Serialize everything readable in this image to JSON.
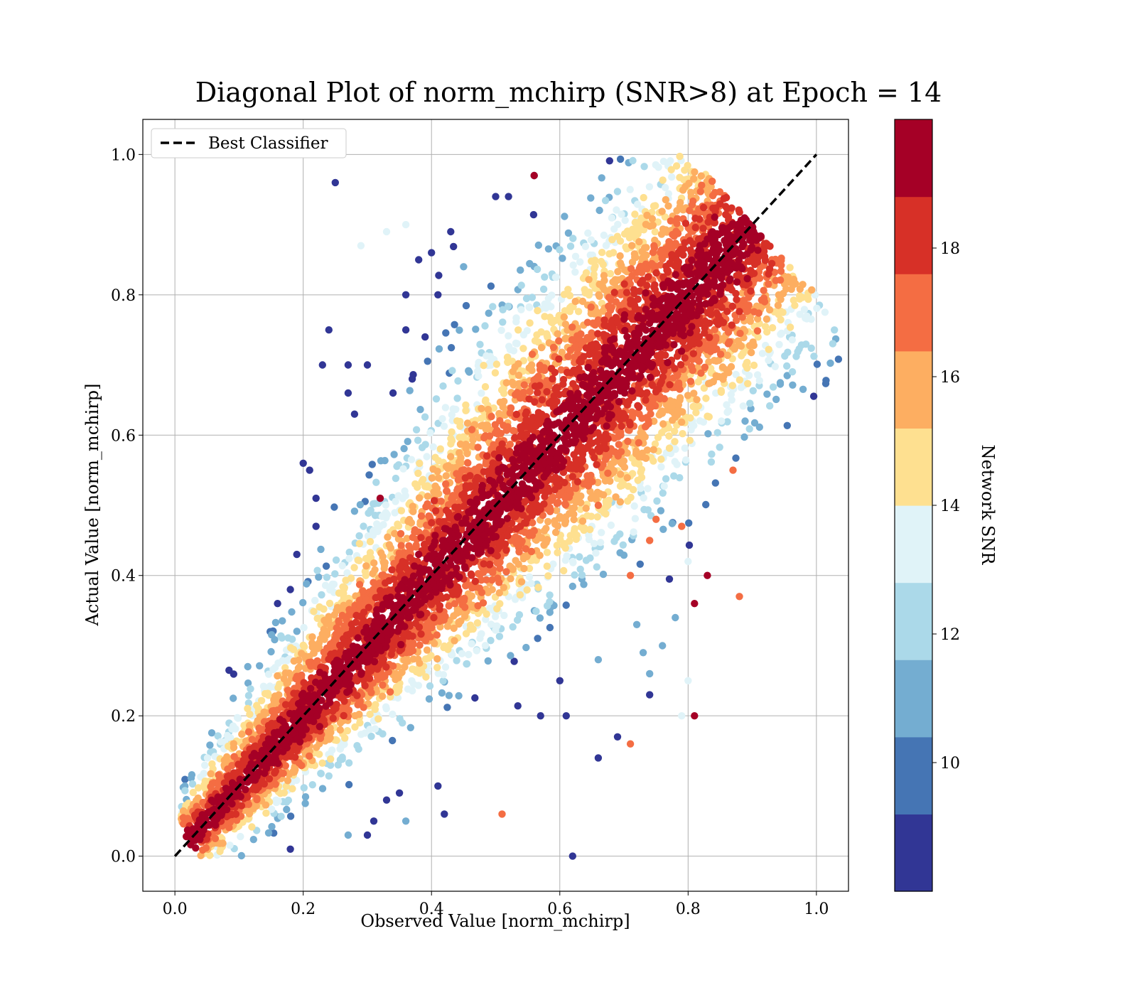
{
  "chart_data": {
    "type": "scatter",
    "title": "Diagonal Plot of norm_mchirp (SNR>8) at Epoch = 14",
    "xlabel": "Observed Value [norm_mchirp]",
    "ylabel": "Actual Value [norm_mchirp]",
    "xlim": [
      -0.05,
      1.05
    ],
    "ylim": [
      -0.05,
      1.05
    ],
    "x_ticks": [
      "0.0",
      "0.2",
      "0.4",
      "0.6",
      "0.8",
      "1.0"
    ],
    "y_ticks": [
      "0.0",
      "0.2",
      "0.4",
      "0.6",
      "0.8",
      "1.0"
    ],
    "grid": true,
    "legend": {
      "placement": "upper-left",
      "entries": [
        "Best Classifier"
      ]
    },
    "reference_line": {
      "name": "Best Classifier",
      "x": [
        0.0,
        1.0
      ],
      "y": [
        0.0,
        1.0
      ],
      "style": "dashed",
      "color": "#000000"
    },
    "colorbar": {
      "label": "Network SNR",
      "range": [
        8,
        20
      ],
      "tick_values": [
        10,
        12,
        14,
        16,
        18
      ],
      "tick_labels": [
        "10",
        "12",
        "14",
        "16",
        "18"
      ],
      "colors": [
        "#313695",
        "#4575b4",
        "#74add1",
        "#abd9e9",
        "#e0f3f8",
        "#fee090",
        "#fdae61",
        "#f46d43",
        "#d73027",
        "#a50026"
      ]
    },
    "series": [
      {
        "points": [
          [
            0.25,
            0.96
          ],
          [
            0.43,
            0.89
          ],
          [
            0.5,
            0.94
          ],
          [
            0.52,
            0.94
          ],
          [
            0.56,
            0.97
          ],
          [
            0.38,
            0.85
          ],
          [
            0.4,
            0.86
          ],
          [
            0.36,
            0.8
          ],
          [
            0.41,
            0.8
          ],
          [
            0.24,
            0.75
          ],
          [
            0.36,
            0.75
          ],
          [
            0.39,
            0.74
          ],
          [
            0.23,
            0.7
          ],
          [
            0.27,
            0.7
          ],
          [
            0.3,
            0.7
          ],
          [
            0.27,
            0.66
          ],
          [
            0.37,
            0.68
          ],
          [
            0.34,
            0.66
          ],
          [
            0.28,
            0.63
          ],
          [
            0.2,
            0.56
          ],
          [
            0.21,
            0.55
          ],
          [
            0.22,
            0.51
          ],
          [
            0.19,
            0.43
          ],
          [
            0.22,
            0.47
          ],
          [
            0.18,
            0.38
          ],
          [
            0.16,
            0.36
          ],
          [
            0.62,
            0.0
          ],
          [
            0.66,
            0.14
          ],
          [
            0.69,
            0.17
          ],
          [
            0.61,
            0.2
          ],
          [
            0.57,
            0.2
          ],
          [
            0.6,
            0.25
          ],
          [
            0.74,
            0.23
          ],
          [
            0.42,
            0.06
          ],
          [
            0.41,
            0.1
          ],
          [
            0.31,
            0.05
          ],
          [
            0.3,
            0.03
          ],
          [
            0.18,
            0.01
          ],
          [
            0.33,
            0.08
          ],
          [
            0.35,
            0.09
          ]
        ],
        "snr": 8.5
      },
      {
        "points": [
          [
            0.45,
            0.84
          ],
          [
            0.74,
            0.26
          ],
          [
            0.73,
            0.29
          ],
          [
            0.72,
            0.33
          ],
          [
            0.66,
            0.28
          ],
          [
            0.76,
            0.3
          ],
          [
            0.78,
            0.34
          ],
          [
            0.36,
            0.05
          ],
          [
            0.27,
            0.03
          ]
        ],
        "snr": 11.5
      },
      {
        "points": [
          [
            0.8,
            0.25
          ],
          [
            0.79,
            0.2
          ],
          [
            0.8,
            0.42
          ],
          [
            0.36,
            0.9
          ],
          [
            0.33,
            0.89
          ],
          [
            0.29,
            0.87
          ]
        ],
        "snr": 13.5
      },
      {
        "points": [
          [
            0.72,
            0.66
          ],
          [
            0.66,
            0.5
          ],
          [
            0.71,
            0.4
          ],
          [
            0.74,
            0.45
          ],
          [
            0.71,
            0.16
          ],
          [
            0.79,
            0.47
          ],
          [
            0.87,
            0.55
          ],
          [
            0.88,
            0.37
          ],
          [
            0.75,
            0.48
          ],
          [
            0.51,
            0.06
          ]
        ],
        "snr": 17.0
      },
      {
        "points": [
          [
            0.81,
            0.2
          ],
          [
            0.56,
            0.97
          ],
          [
            0.32,
            0.51
          ],
          [
            0.38,
            0.43
          ],
          [
            0.81,
            0.36
          ],
          [
            0.83,
            0.4
          ]
        ],
        "snr": 19.5
      }
    ]
  }
}
